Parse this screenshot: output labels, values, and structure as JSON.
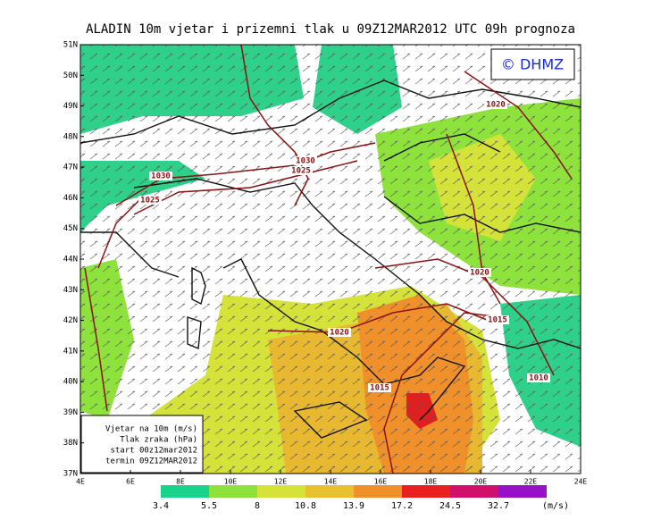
{
  "header": {
    "title": "ALADIN 10m vjetar i prizemni tlak u 09Z12MAR2012 UTC 09h prognoza"
  },
  "logo": "© DHMZ",
  "lat_labels": [
    "51N",
    "50N",
    "49N",
    "48N",
    "47N",
    "46N",
    "45N",
    "44N",
    "43N",
    "42N",
    "41N",
    "40N",
    "39N",
    "38N",
    "37N"
  ],
  "lon_labels": [
    "4E",
    "6E",
    "8E",
    "10E",
    "12E",
    "14E",
    "16E",
    "18E",
    "20E",
    "22E",
    "24E"
  ],
  "isobar_labels": [
    "1030",
    "1025",
    "1030",
    "1025",
    "1020",
    "1020",
    "1015",
    "1020",
    "1010",
    "1015"
  ],
  "info_box": [
    "Vjetar na 10m (m/s)",
    "Tlak zraka (hPa)",
    "start 00z12mar2012",
    "termin 09Z12MAR2012"
  ],
  "colorbar": {
    "labels": [
      "3.4",
      "5.5",
      "8",
      "10.8",
      "13.9",
      "17.2",
      "24.5",
      "32.7"
    ],
    "unit": "(m/s)"
  }
}
